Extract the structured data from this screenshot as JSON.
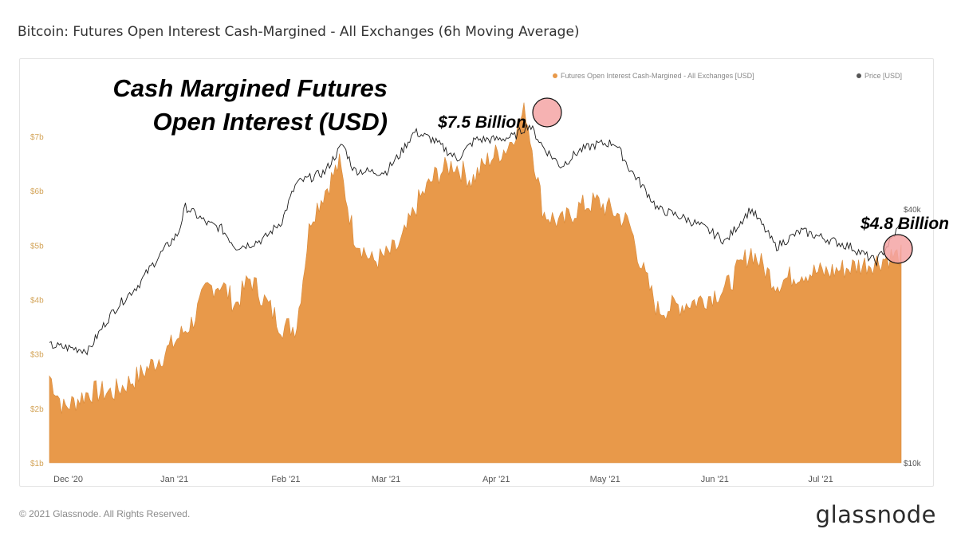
{
  "title": "Bitcoin: Futures Open Interest Cash-Margined - All Exchanges (6h Moving Average)",
  "footer": {
    "copyright": "© 2021 Glassnode. All Rights Reserved.",
    "logo": "glassnode"
  },
  "colors": {
    "open_interest": "#e8994a",
    "price": "#1a1a1a",
    "highlight_circle": "#f4a5a5"
  },
  "chart_data": {
    "type": "area",
    "title": "Bitcoin: Futures Open Interest Cash-Margined - All Exchanges (6h Moving Average)",
    "x_range": [
      "2020-12-01",
      "2021-07-27"
    ],
    "x_ticks": [
      "Dec '20",
      "Jan '21",
      "Feb '21",
      "Mar '21",
      "Apr '21",
      "May '21",
      "Jun '21",
      "Jul '21"
    ],
    "y_left": {
      "ticks": [
        "$1b",
        "$2b",
        "$3b",
        "$4b",
        "$5b",
        "$6b",
        "$7b"
      ],
      "range": [
        1,
        8
      ]
    },
    "y_right": {
      "ticks": [
        "$10k",
        "$40k"
      ],
      "scale": "log"
    },
    "legend": {
      "placement": "top-right",
      "entries": [
        "Futures Open Interest Cash-Margined - All Exchanges [USD]",
        "Price [USD]"
      ]
    },
    "series": [
      {
        "name": "Futures Open Interest Cash-Margined - All Exchanges [USD]",
        "unit": "billion USD",
        "x": [
          "2020-12-01",
          "2020-12-05",
          "2020-12-12",
          "2020-12-19",
          "2020-12-26",
          "2021-01-02",
          "2021-01-06",
          "2021-01-10",
          "2021-01-14",
          "2021-01-18",
          "2021-01-22",
          "2021-01-26",
          "2021-01-30",
          "2021-02-04",
          "2021-02-08",
          "2021-02-12",
          "2021-02-16",
          "2021-02-20",
          "2021-02-24",
          "2021-03-01",
          "2021-03-05",
          "2021-03-09",
          "2021-03-14",
          "2021-03-19",
          "2021-03-24",
          "2021-03-29",
          "2021-04-03",
          "2021-04-08",
          "2021-04-13",
          "2021-04-18",
          "2021-04-23",
          "2021-04-28",
          "2021-05-03",
          "2021-05-08",
          "2021-05-12",
          "2021-05-16",
          "2021-05-20",
          "2021-05-26",
          "2021-06-01",
          "2021-06-08",
          "2021-06-15",
          "2021-06-22",
          "2021-06-29",
          "2021-07-06",
          "2021-07-13",
          "2021-07-20",
          "2021-07-24",
          "2021-07-27"
        ],
        "values": [
          2.6,
          2.0,
          2.3,
          2.3,
          2.6,
          3.0,
          3.3,
          3.6,
          4.2,
          4.3,
          3.9,
          4.4,
          4.0,
          3.5,
          3.5,
          5.5,
          6.0,
          6.5,
          5.2,
          4.7,
          4.8,
          5.0,
          5.8,
          6.3,
          6.5,
          6.2,
          6.6,
          6.8,
          7.5,
          5.6,
          5.4,
          5.7,
          5.8,
          5.6,
          5.4,
          4.5,
          3.8,
          3.9,
          4.0,
          4.2,
          4.9,
          4.3,
          4.5,
          4.5,
          4.6,
          4.7,
          4.8,
          4.8
        ]
      },
      {
        "name": "Price [USD]",
        "unit": "USD",
        "x": [
          "2020-12-01",
          "2020-12-05",
          "2020-12-12",
          "2020-12-19",
          "2020-12-26",
          "2021-01-02",
          "2021-01-06",
          "2021-01-08",
          "2021-01-14",
          "2021-01-18",
          "2021-01-22",
          "2021-01-26",
          "2021-01-30",
          "2021-02-04",
          "2021-02-08",
          "2021-02-12",
          "2021-02-16",
          "2021-02-21",
          "2021-02-24",
          "2021-03-01",
          "2021-03-05",
          "2021-03-09",
          "2021-03-13",
          "2021-03-18",
          "2021-03-25",
          "2021-03-30",
          "2021-04-05",
          "2021-04-10",
          "2021-04-14",
          "2021-04-18",
          "2021-04-23",
          "2021-04-28",
          "2021-05-03",
          "2021-05-08",
          "2021-05-12",
          "2021-05-16",
          "2021-05-20",
          "2021-05-26",
          "2021-06-01",
          "2021-06-08",
          "2021-06-15",
          "2021-06-22",
          "2021-06-29",
          "2021-07-06",
          "2021-07-13",
          "2021-07-20",
          "2021-07-24",
          "2021-07-27"
        ],
        "values": [
          19000,
          18800,
          18500,
          23000,
          26500,
          32000,
          35000,
          40500,
          37000,
          36000,
          32500,
          33000,
          34000,
          37500,
          46000,
          47500,
          49000,
          57000,
          49500,
          49000,
          49000,
          54000,
          61000,
          58500,
          52500,
          58500,
          58500,
          59500,
          63500,
          56000,
          50500,
          55000,
          57000,
          57500,
          50000,
          45000,
          40000,
          38500,
          36500,
          33500,
          40000,
          32500,
          35500,
          34000,
          32500,
          30000,
          33500,
          37000
        ]
      }
    ],
    "annotations": [
      "Cash Margined Futures",
      "Open Interest (USD)",
      "$7.5 Billion",
      "$4.8 Billion"
    ]
  }
}
